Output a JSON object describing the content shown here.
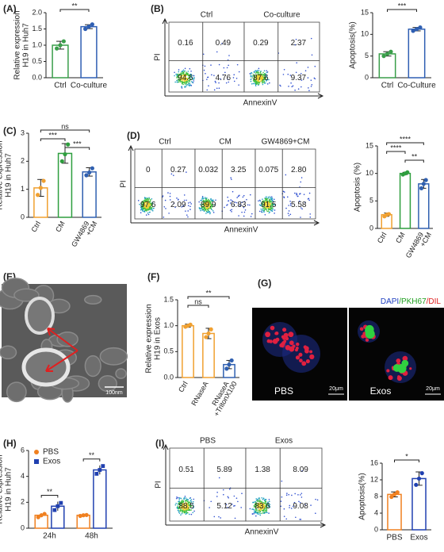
{
  "chart_data": [
    {
      "type": "bar",
      "label": "(A)",
      "ylabel": [
        "Relative expression",
        "H19 in Huh7"
      ],
      "categories": [
        [
          "Ctrl"
        ],
        [
          "Co-culture"
        ]
      ],
      "values": [
        1.0,
        1.57
      ],
      "errors": [
        0.12,
        0.06
      ],
      "points": [
        [
          0.9,
          1.0,
          1.12
        ],
        [
          1.5,
          1.57,
          1.64
        ]
      ],
      "colors": [
        "#3a9e4a",
        "#2f5fb3"
      ],
      "ylim": [
        0,
        2
      ],
      "yticks": [
        {
          "value": 0,
          "label": "0.0"
        },
        {
          "value": 0.5,
          "label": "0.5"
        },
        {
          "value": 1,
          "label": "1.0"
        },
        {
          "value": 1.5,
          "label": "1.5"
        },
        {
          "value": 2,
          "label": "2.0"
        }
      ],
      "annotations": [
        {
          "text": "**",
          "from": 0,
          "to": 1
        }
      ]
    },
    {
      "type": "flow",
      "label": "(B)",
      "xlabel": "AnnexinV",
      "ylabel": "PI",
      "plots": [
        {
          "title": "Ctrl",
          "values": [
            0.16,
            0.49,
            94.6,
            4.76
          ]
        },
        {
          "title": "Co-culture",
          "values": [
            0.29,
            2.37,
            87.6,
            9.37
          ]
        }
      ]
    },
    {
      "type": "bar",
      "ylabel": [
        "Apoptosis(%)"
      ],
      "categories": [
        [
          "Ctrl"
        ],
        [
          "Co-Culture"
        ]
      ],
      "values": [
        5.5,
        11.2
      ],
      "errors": [
        0.5,
        0.4
      ],
      "points": [
        [
          5.0,
          5.5,
          6.0
        ],
        [
          10.8,
          11.2,
          11.6
        ]
      ],
      "colors": [
        "#3a9e4a",
        "#2f5fb3"
      ],
      "ylim": [
        0,
        15
      ],
      "yticks": [
        0,
        5,
        10,
        15
      ],
      "annotations": [
        {
          "text": "***",
          "from": 0,
          "to": 1
        }
      ]
    },
    {
      "type": "bar",
      "label": "(C)",
      "ylabel": [
        "Relative expression",
        "H19 in Huh7"
      ],
      "categories": [
        [
          "Ctrl"
        ],
        [
          "CM"
        ],
        [
          "GW4869",
          "+CM"
        ]
      ],
      "values": [
        1.05,
        2.28,
        1.62
      ],
      "errors": [
        0.3,
        0.35,
        0.15
      ],
      "points": [
        [
          0.8,
          1.05,
          1.3
        ],
        [
          2.0,
          2.25,
          2.6
        ],
        [
          1.5,
          1.6,
          1.75
        ]
      ],
      "colors": [
        "#f0a030",
        "#2e9e3e",
        "#3060b0"
      ],
      "ylim": [
        0,
        3
      ],
      "yticks": [
        0,
        1,
        2,
        3
      ],
      "annotations": [
        {
          "text": "ns",
          "from": 0,
          "to": 2
        },
        {
          "text": "***",
          "from": 0,
          "to": 1
        },
        {
          "text": "***",
          "from": 1,
          "to": 2
        }
      ]
    },
    {
      "type": "flow",
      "label": "(D)",
      "xlabel": "AnnexinV",
      "ylabel": "PI",
      "plots": [
        {
          "title": "Ctrl",
          "values": [
            0,
            0.27,
            97.6,
            2.09
          ]
        },
        {
          "title": "CM",
          "values": [
            0.032,
            3.25,
            89.9,
            6.83
          ]
        },
        {
          "title": "GW4869+CM",
          "values": [
            0.075,
            2.8,
            91.5,
            5.58
          ],
          "value_labels": [
            "0.075",
            "2.80",
            "91.5",
            "5.58"
          ]
        }
      ]
    },
    {
      "type": "bar",
      "ylabel": [
        "Apoptosis (%)"
      ],
      "categories": [
        [
          "Ctrl"
        ],
        [
          "CM"
        ],
        [
          "GW4869",
          "+CM"
        ]
      ],
      "values": [
        2.5,
        10.0,
        8.1
      ],
      "errors": [
        0.3,
        0.2,
        0.8
      ],
      "points": [
        [
          2.2,
          2.5,
          2.6
        ],
        [
          9.8,
          10.0,
          10.2
        ],
        [
          7.3,
          8.1,
          8.8
        ]
      ],
      "colors": [
        "#f0a030",
        "#2e9e3e",
        "#3060b0"
      ],
      "ylim": [
        0,
        15
      ],
      "yticks": [
        0,
        5,
        10,
        15
      ],
      "annotations": [
        {
          "text": "****",
          "from": 0,
          "to": 2
        },
        {
          "text": "****",
          "from": 0,
          "to": 1
        },
        {
          "text": "**",
          "from": 1,
          "to": 2
        }
      ]
    },
    {
      "type": "bar",
      "label": "(F)",
      "ylabel": [
        "Relative expression",
        "H19 in Exos"
      ],
      "categories": [
        [
          "Ctrl"
        ],
        [
          "RNaseA"
        ],
        [
          "RNaseA",
          "+TritonX100"
        ]
      ],
      "values": [
        1.0,
        0.85,
        0.25
      ],
      "errors": [
        0.03,
        0.1,
        0.08
      ],
      "points": [
        [
          0.98,
          1.0,
          1.02
        ],
        [
          0.78,
          0.85,
          0.93
        ],
        [
          0.17,
          0.25,
          0.33
        ]
      ],
      "colors": [
        "#f0a030",
        "#f0a030",
        "#3060b0"
      ],
      "ylim": [
        0,
        1.5
      ],
      "yticks": [
        {
          "value": 0,
          "label": "0.0"
        },
        {
          "value": 0.5,
          "label": "0.5"
        },
        {
          "value": 1,
          "label": "1.0"
        },
        {
          "value": 1.5,
          "label": "1.5"
        }
      ],
      "annotations": [
        {
          "text": "**",
          "from": 0,
          "to": 2
        },
        {
          "text": "ns",
          "from": 0,
          "to": 1
        }
      ]
    },
    {
      "type": "grouped_bar",
      "label": "(H)",
      "ylabel": [
        "Relative expression",
        "H19 in Huh7"
      ],
      "categories": [
        "24h",
        "48h"
      ],
      "series": [
        {
          "name": "PBS",
          "color": "#f08020",
          "values": [
            1.0,
            1.0
          ],
          "errors": [
            0.15,
            0.05
          ],
          "points": [
            [
              0.85,
              1.0,
              1.1
            ],
            [
              0.95,
              1.0,
              1.02
            ]
          ]
        },
        {
          "name": "Exos",
          "color": "#2040b0",
          "values": [
            1.7,
            4.5
          ],
          "errors": [
            0.35,
            0.35
          ],
          "points": [
            [
              1.4,
              1.7,
              1.95
            ],
            [
              4.2,
              4.5,
              4.8
            ]
          ]
        }
      ],
      "ylim": [
        0,
        6
      ],
      "yticks": [
        0,
        2,
        4,
        6
      ],
      "annotations": [
        {
          "text": "**",
          "category": 0
        },
        {
          "text": "**",
          "category": 1
        }
      ]
    },
    {
      "type": "flow",
      "label": "(I)",
      "xlabel": "AnnexinV",
      "ylabel": "PI",
      "plots": [
        {
          "title": "PBS",
          "values": [
            0.51,
            5.89,
            88.5,
            5.12
          ]
        },
        {
          "title": "Exos",
          "values": [
            1.38,
            8.09,
            83.6,
            9.08
          ]
        }
      ]
    },
    {
      "type": "bar",
      "ylabel": [
        "Apoptosis(%)"
      ],
      "categories": [
        [
          "PBS"
        ],
        [
          "Exos"
        ]
      ],
      "values": [
        8.5,
        12.3
      ],
      "errors": [
        0.6,
        1.6
      ],
      "points": [
        [
          7.9,
          8.5,
          9.0
        ],
        [
          10.8,
          12.3,
          13.6
        ]
      ],
      "colors": [
        "#f08020",
        "#2040b0"
      ],
      "ylim": [
        0,
        16
      ],
      "yticks": [
        0,
        4,
        8,
        12,
        16
      ],
      "annotations": [
        {
          "text": "*",
          "from": 0,
          "to": 1
        }
      ]
    }
  ],
  "images": {
    "E": {
      "label": "(E)",
      "scale": "100nm"
    },
    "G": {
      "label": "(G)",
      "legend": [
        {
          "text": "DAPI",
          "color": "#2040c0"
        },
        {
          "text": "/PKH67",
          "color": "#20a020"
        },
        {
          "text": "/DIL",
          "color": "#e02020"
        }
      ],
      "panels": [
        {
          "caption": "PBS",
          "scale": "20μm"
        },
        {
          "caption": "Exos",
          "scale": "20μm"
        }
      ]
    }
  }
}
